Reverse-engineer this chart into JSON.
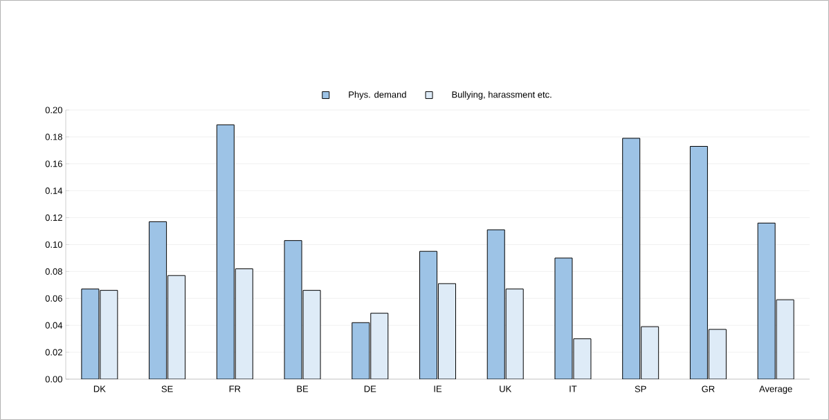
{
  "chart_data": {
    "type": "bar",
    "categories": [
      "DK",
      "SE",
      "FR",
      "BE",
      "DE",
      "IE",
      "UK",
      "IT",
      "SP",
      "GR",
      "Average"
    ],
    "series": [
      {
        "name": "Phys. demand",
        "color": "#9dc3e6",
        "values": [
          0.067,
          0.117,
          0.189,
          0.103,
          0.042,
          0.095,
          0.111,
          0.09,
          0.179,
          0.173,
          0.116
        ]
      },
      {
        "name": "Bullying, harassment etc.",
        "color": "#deebf7",
        "values": [
          0.066,
          0.077,
          0.082,
          0.066,
          0.049,
          0.071,
          0.067,
          0.03,
          0.039,
          0.037,
          0.059
        ]
      }
    ],
    "ylim": [
      0,
      0.2
    ],
    "yticks": [
      {
        "value": 0,
        "label": "0.00"
      },
      {
        "value": 0.02,
        "label": "0.02"
      },
      {
        "value": 0.04,
        "label": "0.04"
      },
      {
        "value": 0.06,
        "label": "0.06"
      },
      {
        "value": 0.08,
        "label": "0.08"
      },
      {
        "value": 0.1,
        "label": "0.10"
      },
      {
        "value": 0.12,
        "label": "0.12"
      },
      {
        "value": 0.14,
        "label": "0.14"
      },
      {
        "value": 0.16,
        "label": "0.16"
      },
      {
        "value": 0.18,
        "label": "0.18"
      },
      {
        "value": 0.2,
        "label": "0.20"
      }
    ],
    "grid": "y",
    "legend": "top"
  }
}
